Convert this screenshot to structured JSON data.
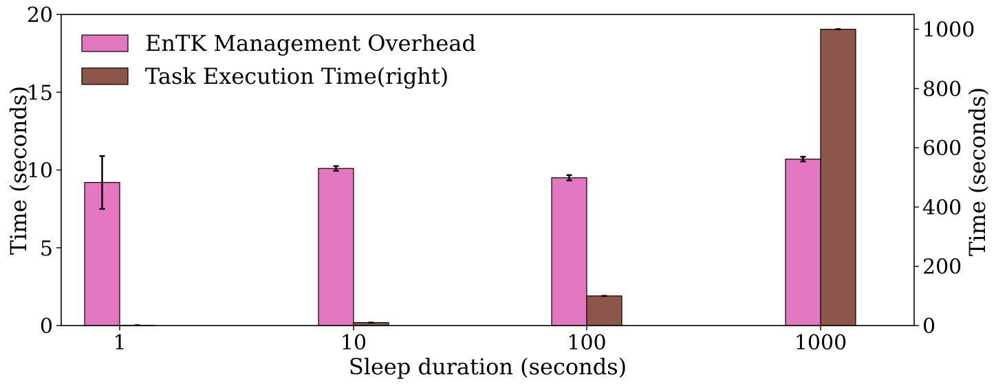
{
  "chart_data": {
    "type": "bar",
    "categories": [
      "1",
      "10",
      "100",
      "1000"
    ],
    "xlabel": "Sleep duration (seconds)",
    "ylabel_left": "Time (seconds)",
    "ylabel_right": "Time (seconds)",
    "ylim_left": [
      0,
      20
    ],
    "ylim_right": [
      0,
      1050
    ],
    "yticks_left": [
      "0",
      "5",
      "10",
      "15",
      "20"
    ],
    "yticks_right": [
      "0",
      "200",
      "400",
      "600",
      "800",
      "1000"
    ],
    "grid": false,
    "legend_position": "top-left",
    "series": [
      {
        "name": "EnTK Management Overhead",
        "axis": "left",
        "color": "#e377c2",
        "values": [
          9.2,
          10.1,
          9.5,
          10.7
        ],
        "errors": [
          1.7,
          0.15,
          0.17,
          0.15
        ]
      },
      {
        "name": "Task Execution Time(right)",
        "axis": "right",
        "color": "#8c564b",
        "values": [
          1,
          10,
          100,
          1000
        ],
        "errors": [
          0,
          0,
          0,
          0
        ]
      }
    ]
  }
}
